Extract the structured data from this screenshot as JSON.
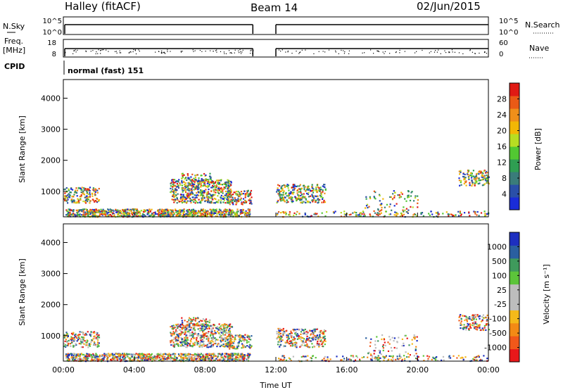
{
  "header": {
    "station": "Halley (fitACF)",
    "beam": "Beam 14",
    "date": "02/Jun/2015"
  },
  "side_labels": {
    "nsky": "N.Sky",
    "nsearch": "N.Search",
    "freq": "Freq.",
    "mhz": "[MHz]",
    "nave": "Nave",
    "cpid": "CPID"
  },
  "cpid_text": "normal (fast) 151",
  "xaxis_label": "Time UT",
  "colors": {
    "power": [
      "#1a2cd8",
      "#2a4fa8",
      "#3a7c7a",
      "#2f9e52",
      "#52c832",
      "#b7dd22",
      "#f2b705",
      "#ef8f1a",
      "#ea5a16",
      "#e01a14"
    ],
    "velocity": [
      "#e8181a",
      "#f1581a",
      "#f38a15",
      "#f4b91a",
      "#bdbdbd",
      "#bdbdbd",
      "#5cc43a",
      "#3f9a5c",
      "#2a5fa0",
      "#1d2fc0"
    ]
  },
  "chart_data": [
    {
      "type": "line",
      "panel": "nsky-nsearch",
      "ylabel_left": "N.Sky",
      "ylabel_right": "N.Search",
      "left_ticks": [
        "10^5",
        "10^0"
      ],
      "right_ticks": [
        "10^5",
        "10^0"
      ],
      "gaps": [
        [
          10.7,
          12.0
        ]
      ]
    },
    {
      "type": "line",
      "panel": "freq-nave",
      "ylabel_left": "Freq. [MHz]",
      "ylabel_right": "Nave",
      "left_ticks": [
        "18",
        "8"
      ],
      "right_ticks": [
        "60",
        "0"
      ],
      "gaps": [
        [
          10.7,
          12.0
        ]
      ]
    },
    {
      "type": "heatmap",
      "panel": "power",
      "ylabel": "Slant Range [km]",
      "xlabel": "Time UT",
      "y_ticks": [
        1000,
        2000,
        3000,
        4000
      ],
      "ylim": [
        180,
        4600
      ],
      "x_tick_labels": [
        "00:00",
        "04:00",
        "08:00",
        "12:00",
        "16:00",
        "20:00",
        "00:00"
      ],
      "xlim": [
        0,
        24
      ],
      "colorbar": {
        "label": "Power [dB]",
        "tick_labels": [
          "4",
          "8",
          "12",
          "16",
          "20",
          "24",
          "28"
        ]
      }
    },
    {
      "type": "heatmap",
      "panel": "velocity",
      "ylabel": "Slant Range [km]",
      "xlabel": "Time UT",
      "y_ticks": [
        1000,
        2000,
        3000,
        4000
      ],
      "ylim": [
        180,
        4600
      ],
      "x_tick_labels": [
        "00:00",
        "04:00",
        "08:00",
        "12:00",
        "16:00",
        "20:00",
        "00:00"
      ],
      "xlim": [
        0,
        24
      ],
      "colorbar": {
        "label": "Velocity [m s⁻¹]",
        "tick_labels": [
          "-1000",
          "-500",
          "-100",
          "-25",
          "25",
          "100",
          "500",
          "1000"
        ]
      }
    }
  ]
}
